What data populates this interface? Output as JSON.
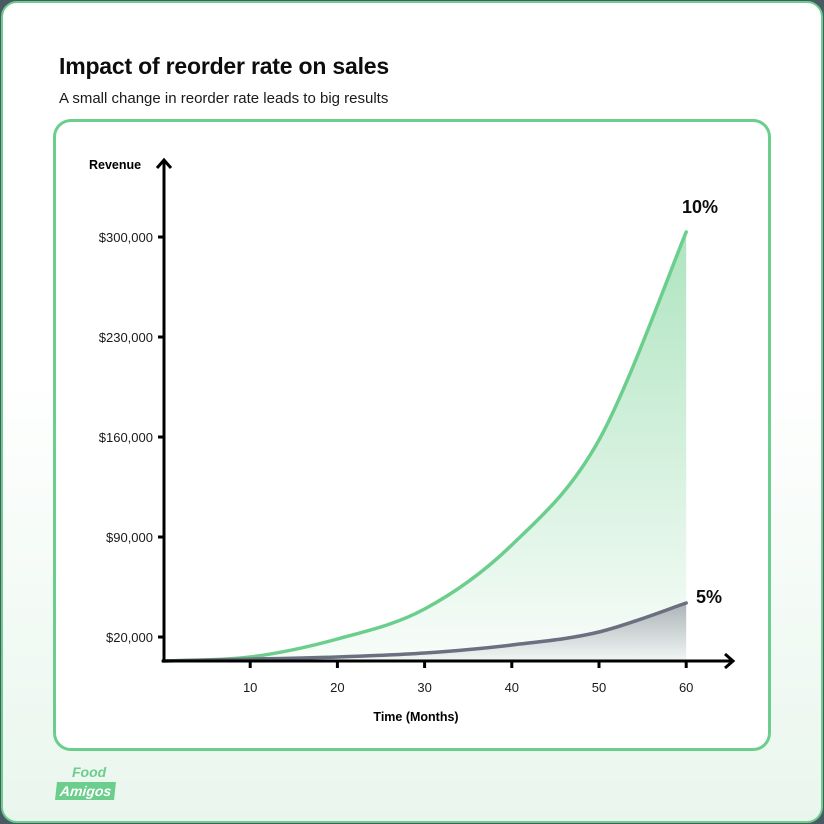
{
  "header": {
    "title": "Impact of reorder rate on sales",
    "subtitle": "A small change in reorder rate leads to big results"
  },
  "colors": {
    "accent_green": "#6cce8c",
    "series_5pct": "#6b6f80",
    "text": "#0d0d0d"
  },
  "brand": {
    "line1": "Food",
    "line2": "Amigos"
  },
  "chart_data": {
    "type": "area",
    "title": "Impact of reorder rate on sales",
    "subtitle": "A small change in reorder rate leads to big results",
    "xlabel": "Time (Months)",
    "ylabel": "Revenue",
    "x_ticks": [
      "10",
      "20",
      "30",
      "40",
      "50",
      "60"
    ],
    "y_ticks": [
      "$20,000",
      "$90,000",
      "$160,000",
      "$230,000",
      "$300,000"
    ],
    "x": [
      0,
      10,
      20,
      30,
      40,
      50,
      60
    ],
    "xlim": [
      0,
      60
    ],
    "ylim": [
      3000,
      330000
    ],
    "grid": false,
    "legend": "inline end labels",
    "series": [
      {
        "name": "10%",
        "values": [
          3200,
          6000,
          18600,
          39600,
          84400,
          157900,
          303500
        ]
      },
      {
        "name": "5%",
        "values": [
          3200,
          4500,
          6000,
          8800,
          14400,
          23500,
          43800
        ]
      }
    ],
    "annotations": [
      "10%",
      "5%"
    ]
  }
}
